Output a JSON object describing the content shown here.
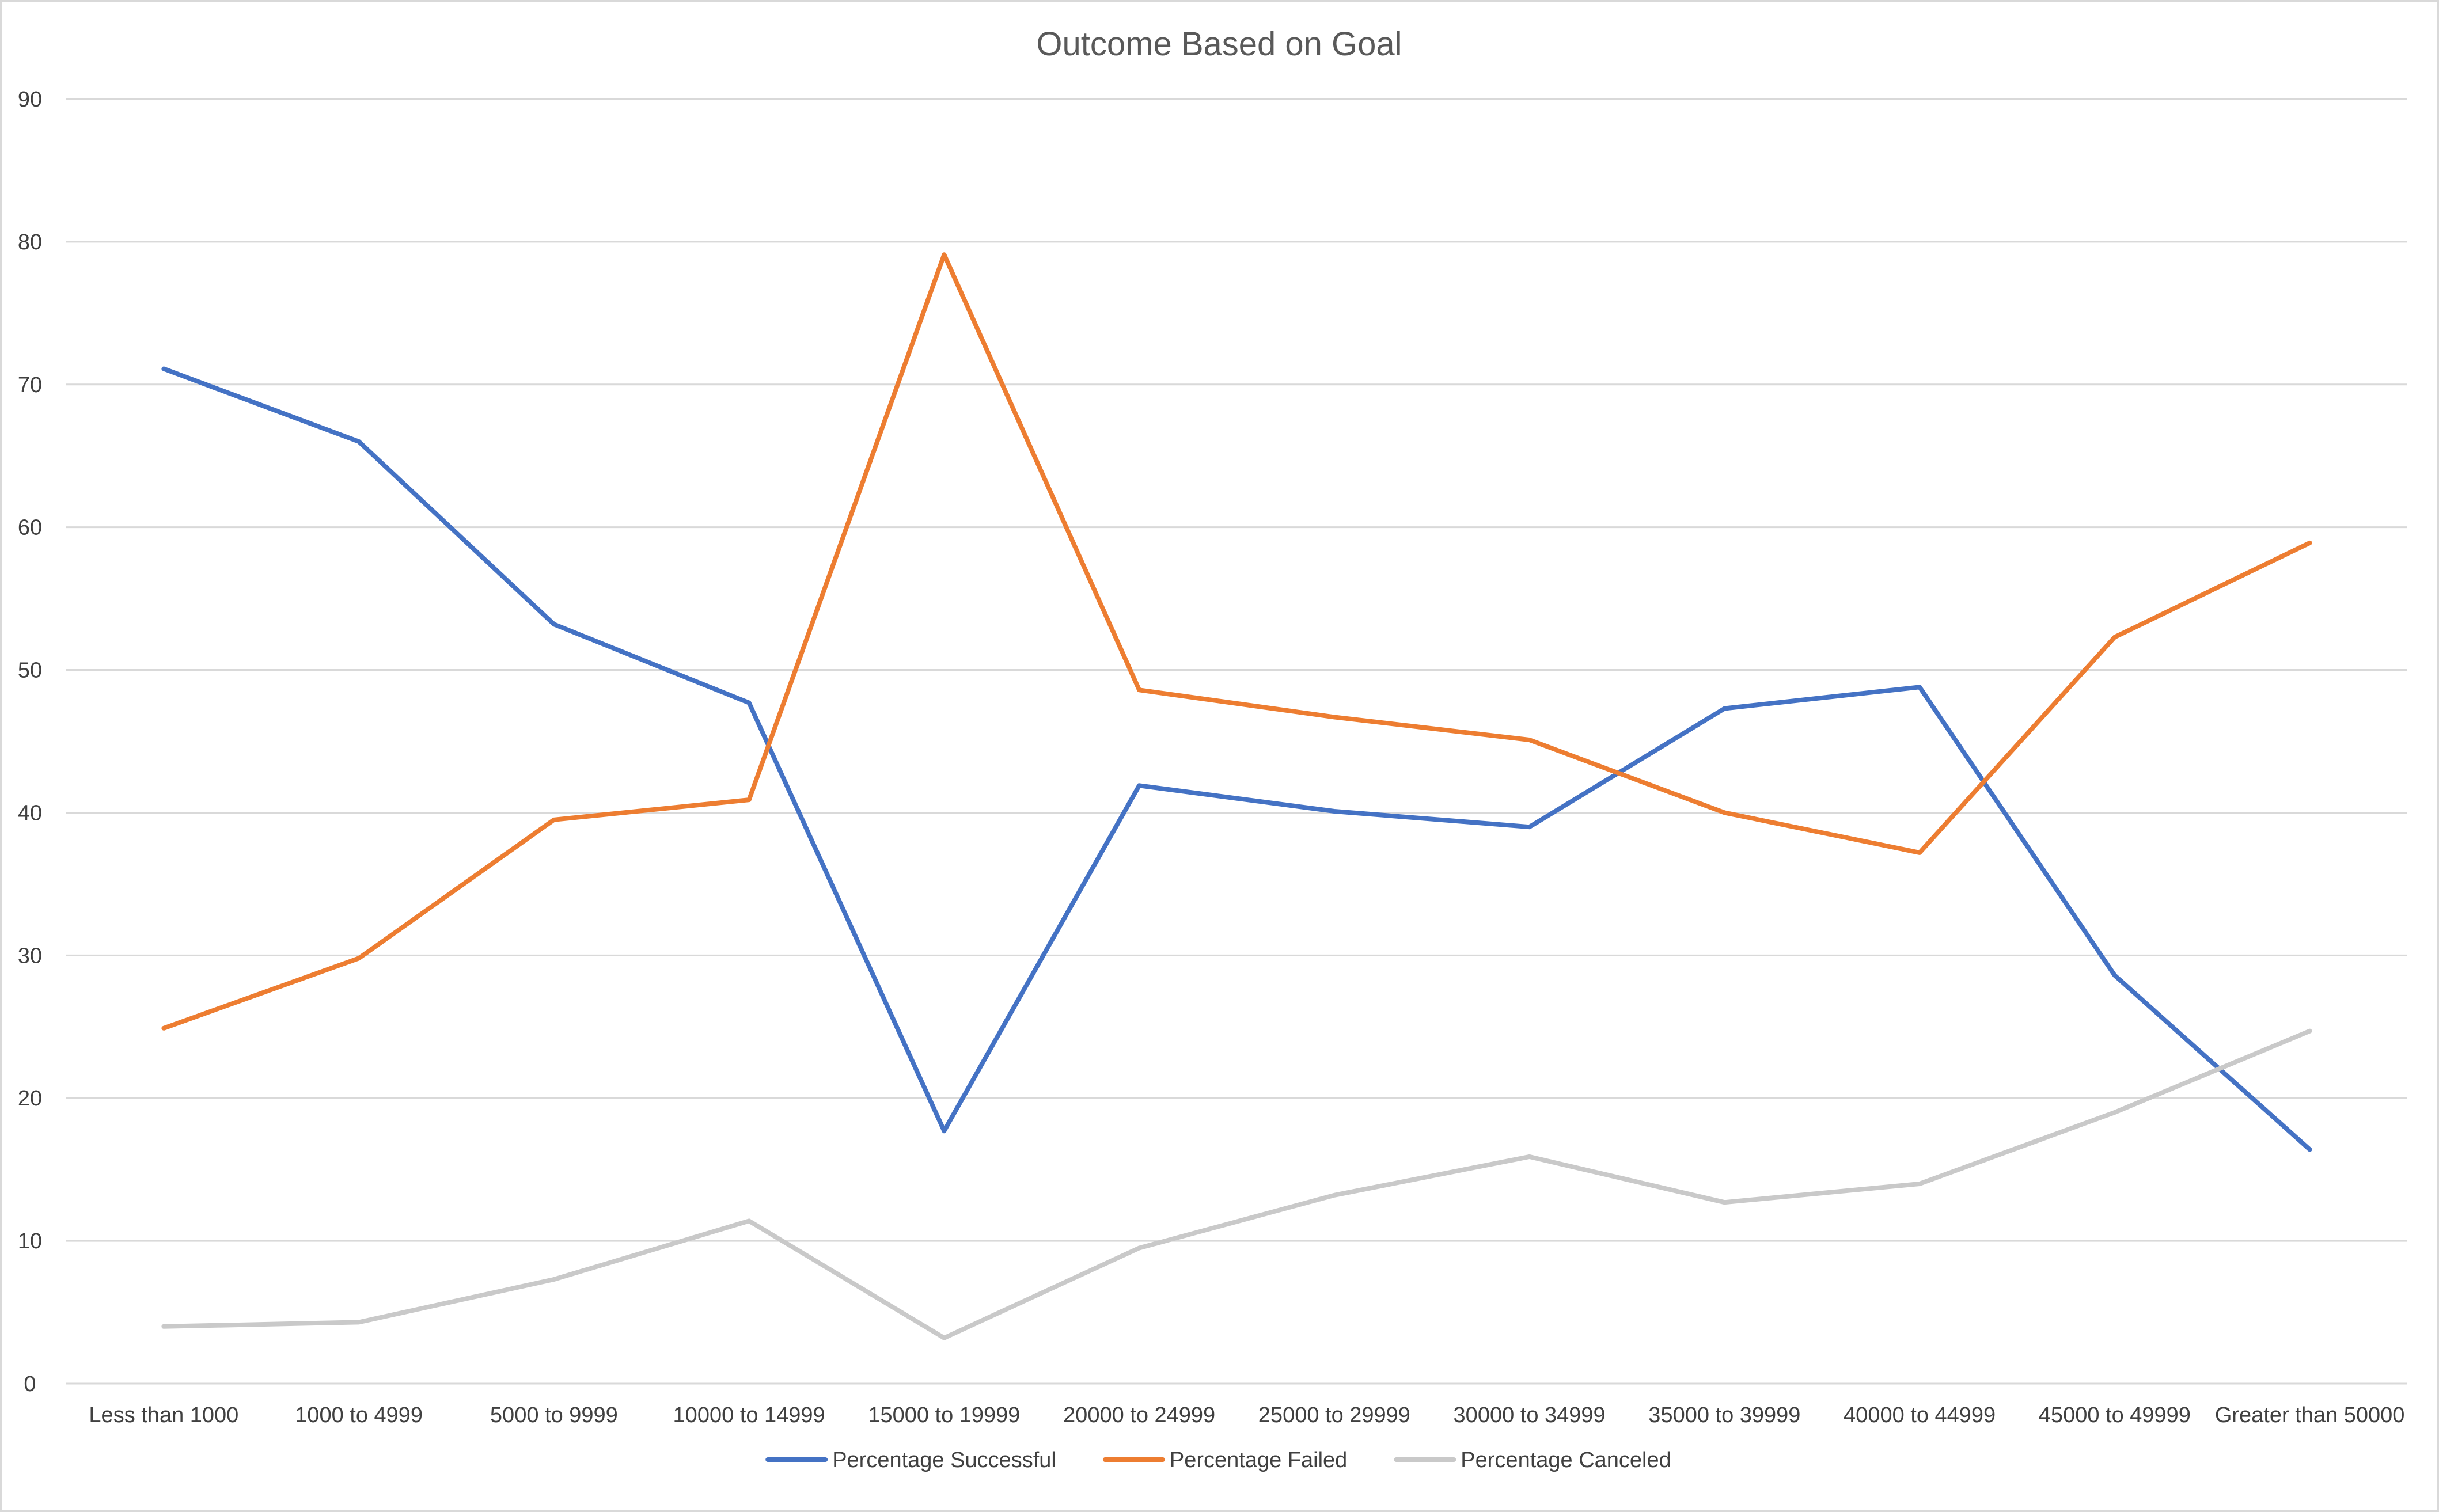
{
  "chart_data": {
    "type": "line",
    "title": "Outcome Based on Goal",
    "xlabel": "",
    "ylabel": "",
    "ylim": [
      0,
      90
    ],
    "yticks": [
      0,
      10,
      20,
      30,
      40,
      50,
      60,
      70,
      80,
      90
    ],
    "grid": true,
    "legend_position": "bottom",
    "categories": [
      "Less than 1000",
      "1000 to 4999",
      "5000 to 9999",
      "10000 to 14999",
      "15000 to 19999",
      "20000 to 24999",
      "25000 to 29999",
      "30000 to 34999",
      "35000 to 39999",
      "40000 to 44999",
      "45000 to 49999",
      "Greater than 50000"
    ],
    "series": [
      {
        "name": "Percentage Successful",
        "color": "#4472c4",
        "values": [
          71.1,
          66.0,
          53.2,
          47.7,
          17.7,
          41.9,
          40.1,
          39.0,
          47.3,
          48.8,
          28.6,
          16.4
        ]
      },
      {
        "name": "Percentage Failed",
        "color": "#ed7d31",
        "values": [
          24.9,
          29.8,
          39.5,
          40.9,
          79.1,
          48.6,
          46.7,
          45.1,
          40.0,
          37.2,
          52.3,
          58.9
        ]
      },
      {
        "name": "Percentage Canceled",
        "color": "#c9c9c9",
        "values": [
          4.0,
          4.3,
          7.3,
          11.4,
          3.2,
          9.5,
          13.2,
          15.9,
          12.7,
          14.0,
          19.0,
          24.7
        ]
      }
    ],
    "gridline_color": "#d9d9d9"
  }
}
